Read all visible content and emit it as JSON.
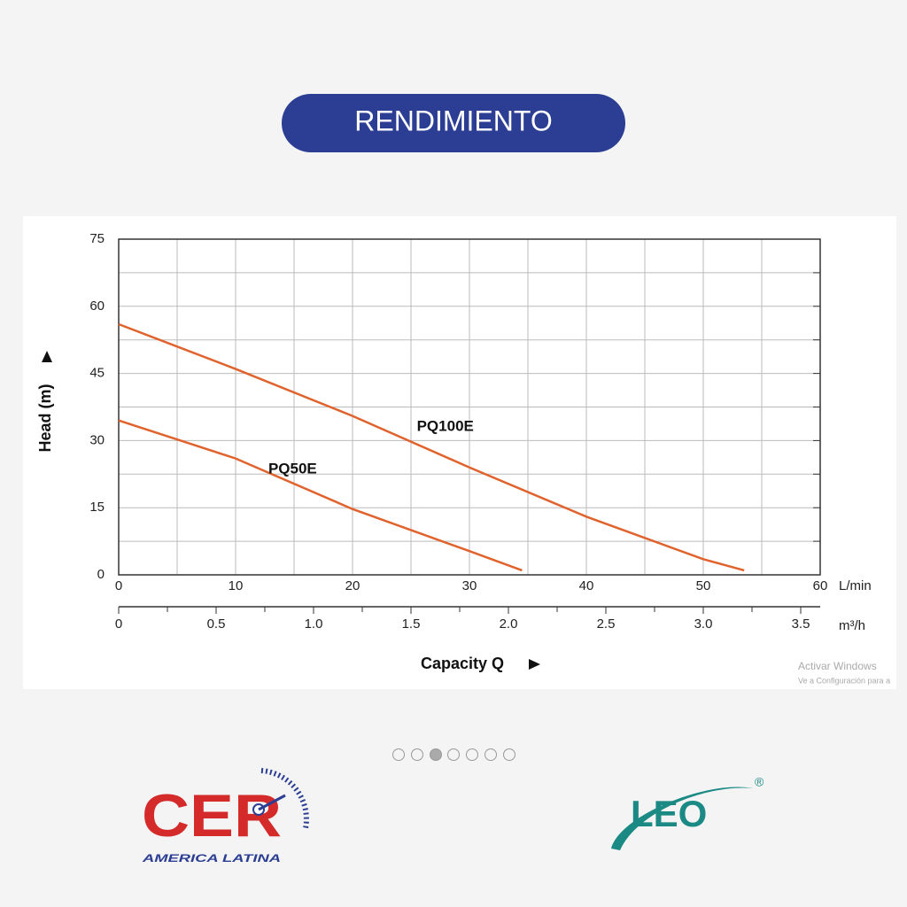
{
  "header": {
    "title": "RENDIMIENTO"
  },
  "chart_data": {
    "type": "line",
    "y_label": "Head (m)",
    "x_label": "Capacity Q",
    "x_unit": "L/min",
    "x2_unit": "m³/h",
    "xlim": [
      0,
      60
    ],
    "xticks": [
      0,
      10,
      20,
      30,
      40,
      50,
      60
    ],
    "x2lim": [
      0,
      3.6
    ],
    "x2ticks": [
      0,
      0.5,
      {
        "value": 1,
        "label": "1.0"
      },
      1.5,
      {
        "value": 2,
        "label": "2.0"
      },
      2.5,
      {
        "value": 3,
        "label": "3.0"
      },
      3.5
    ],
    "ylim": [
      0,
      75
    ],
    "yticks": [
      0,
      15,
      30,
      45,
      60,
      75
    ],
    "grid": true,
    "series": [
      {
        "name": "PQ100E",
        "color": "#e0622c",
        "x": [
          0,
          10,
          20,
          30,
          40,
          50,
          53.5
        ],
        "values": [
          56,
          46,
          35.5,
          24,
          13,
          3.5,
          1
        ]
      },
      {
        "name": "PQ50E",
        "color": "#e0622c",
        "x": [
          0,
          10,
          20,
          30,
          34.5
        ],
        "values": [
          34.5,
          26,
          14.7,
          5.3,
          1
        ]
      }
    ]
  },
  "watermark": {
    "line1": "Activar Windows",
    "line2": "Ve a Configuración para a"
  },
  "logos": {
    "left": "CER",
    "left_sub": "AMERICA LATINA",
    "right": "LEO",
    "right_mark": "®"
  }
}
